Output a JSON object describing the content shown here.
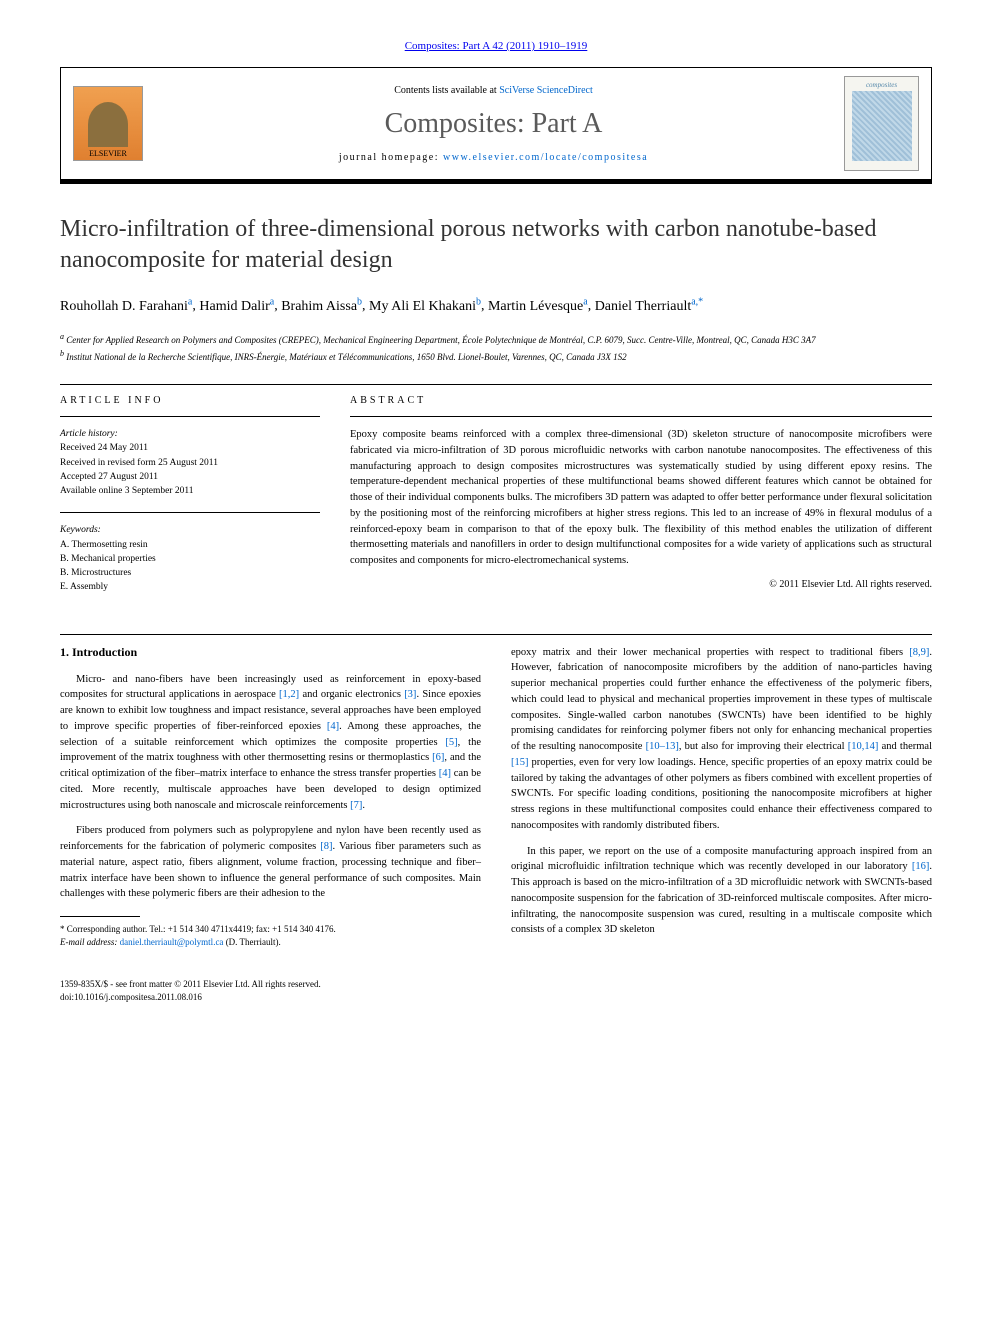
{
  "journal_ref": {
    "text": "Composites: Part A 42 (2011) 1910–1919",
    "link_color": "#0066cc"
  },
  "header": {
    "elsevier_label": "ELSEVIER",
    "contents_prefix": "Contents lists available at ",
    "contents_link": "SciVerse ScienceDirect",
    "journal_title": "Composites: Part A",
    "homepage_prefix": "journal homepage: ",
    "homepage_link": "www.elsevier.com/locate/compositesa",
    "cover_label": "composites"
  },
  "article": {
    "title": "Micro-infiltration of three-dimensional porous networks with carbon nanotube-based nanocomposite for material design",
    "authors": [
      {
        "name": "Rouhollah D. Farahani",
        "sup": "a"
      },
      {
        "name": "Hamid Dalir",
        "sup": "a"
      },
      {
        "name": "Brahim Aissa",
        "sup": "b"
      },
      {
        "name": "My Ali El Khakani",
        "sup": "b"
      },
      {
        "name": "Martin Lévesque",
        "sup": "a"
      },
      {
        "name": "Daniel Therriault",
        "sup": "a,*"
      }
    ],
    "affiliations": [
      {
        "sup": "a",
        "text": "Center for Applied Research on Polymers and Composites (CREPEC), Mechanical Engineering Department, École Polytechnique de Montréal, C.P. 6079, Succ. Centre-Ville, Montreal, QC, Canada H3C 3A7"
      },
      {
        "sup": "b",
        "text": "Institut National de la Recherche Scientifique, INRS-Énergie, Matériaux et Télécommunications, 1650 Blvd. Lionel-Boulet, Varennes, QC, Canada J3X 1S2"
      }
    ]
  },
  "info": {
    "label": "ARTICLE INFO",
    "history_header": "Article history:",
    "history": [
      "Received 24 May 2011",
      "Received in revised form 25 August 2011",
      "Accepted 27 August 2011",
      "Available online 3 September 2011"
    ],
    "keywords_header": "Keywords:",
    "keywords": [
      "A. Thermosetting resin",
      "B. Mechanical properties",
      "B. Microstructures",
      "E. Assembly"
    ]
  },
  "abstract": {
    "label": "ABSTRACT",
    "text": "Epoxy composite beams reinforced with a complex three-dimensional (3D) skeleton structure of nanocomposite microfibers were fabricated via micro-infiltration of 3D porous microfluidic networks with carbon nanotube nanocomposites. The effectiveness of this manufacturing approach to design composites microstructures was systematically studied by using different epoxy resins. The temperature-dependent mechanical properties of these multifunctional beams showed different features which cannot be obtained for those of their individual components bulks. The microfibers 3D pattern was adapted to offer better performance under flexural solicitation by the positioning most of the reinforcing microfibers at higher stress regions. This led to an increase of 49% in flexural modulus of a reinforced-epoxy beam in comparison to that of the epoxy bulk. The flexibility of this method enables the utilization of different thermosetting materials and nanofillers in order to design multifunctional composites for a wide variety of applications such as structural composites and components for micro-electromechanical systems.",
    "copyright": "© 2011 Elsevier Ltd. All rights reserved."
  },
  "intro": {
    "heading": "1. Introduction",
    "p1_a": "Micro- and nano-fibers have been increasingly used as reinforcement in epoxy-based composites for structural applications in aerospace ",
    "p1_ref1": "[1,2]",
    "p1_b": " and organic electronics ",
    "p1_ref2": "[3]",
    "p1_c": ". Since epoxies are known to exhibit low toughness and impact resistance, several approaches have been employed to improve specific properties of fiber-reinforced epoxies ",
    "p1_ref3": "[4]",
    "p1_d": ". Among these approaches, the selection of a suitable reinforcement which optimizes the composite properties ",
    "p1_ref4": "[5]",
    "p1_e": ", the improvement of the matrix toughness with other thermosetting resins or thermoplastics ",
    "p1_ref5": "[6]",
    "p1_f": ", and the critical optimization of the fiber–matrix interface to enhance the stress transfer properties ",
    "p1_ref6": "[4]",
    "p1_g": " can be cited. More recently, multiscale approaches have been developed to design optimized microstructures using both nanoscale and microscale reinforcements ",
    "p1_ref7": "[7]",
    "p1_h": ".",
    "p2_a": "Fibers produced from polymers such as polypropylene and nylon have been recently used as reinforcements for the fabrication of polymeric composites ",
    "p2_ref1": "[8]",
    "p2_b": ". Various fiber parameters such as material nature, aspect ratio, fibers alignment, volume fraction, processing technique and fiber–matrix interface have been shown to influence the general performance of such composites. Main challenges with these polymeric fibers are their adhesion to the ",
    "p3_a": "epoxy matrix and their lower mechanical properties with respect to traditional fibers ",
    "p3_ref1": "[8,9]",
    "p3_b": ". However, fabrication of nanocomposite microfibers by the addition of nano-particles having superior mechanical properties could further enhance the effectiveness of the polymeric fibers, which could lead to physical and mechanical properties improvement in these types of multiscale composites. Single-walled carbon nanotubes (SWCNTs) have been identified to be highly promising candidates for reinforcing polymer fibers not only for enhancing mechanical properties of the resulting nanocomposite ",
    "p3_ref2": "[10–13]",
    "p3_c": ", but also for improving their electrical ",
    "p3_ref3": "[10,14]",
    "p3_d": " and thermal ",
    "p3_ref4": "[15]",
    "p3_e": " properties, even for very low loadings. Hence, specific properties of an epoxy matrix could be tailored by taking the advantages of other polymers as fibers combined with excellent properties of SWCNTs. For specific loading conditions, positioning the nanocomposite microfibers at higher stress regions in these multifunctional composites could enhance their effectiveness compared to nanocomposites with randomly distributed fibers.",
    "p4_a": "In this paper, we report on the use of a composite manufacturing approach inspired from an original microfluidic infiltration technique which was recently developed in our laboratory ",
    "p4_ref1": "[16]",
    "p4_b": ". This approach is based on the micro-infiltration of a 3D microfluidic network with SWCNTs-based nanocomposite suspension for the fabrication of 3D-reinforced multiscale composites. After micro-infiltrating, the nanocomposite suspension was cured, resulting in a multiscale composite which consists of a complex 3D skeleton"
  },
  "footnote": {
    "marker": "*",
    "text": " Corresponding author. Tel.: +1 514 340 4711x4419; fax: +1 514 340 4176.",
    "email_label": "E-mail address: ",
    "email": "daniel.therriault@polymtl.ca",
    "email_suffix": " (D. Therriault)."
  },
  "footer": {
    "issn": "1359-835X/$ - see front matter © 2011 Elsevier Ltd. All rights reserved.",
    "doi": "doi:10.1016/j.compositesa.2011.08.016"
  },
  "styling": {
    "link_color": "#0066cc",
    "body_font_size": 10.5,
    "title_font_size": 24,
    "journal_title_color": "#5a5a5a"
  }
}
